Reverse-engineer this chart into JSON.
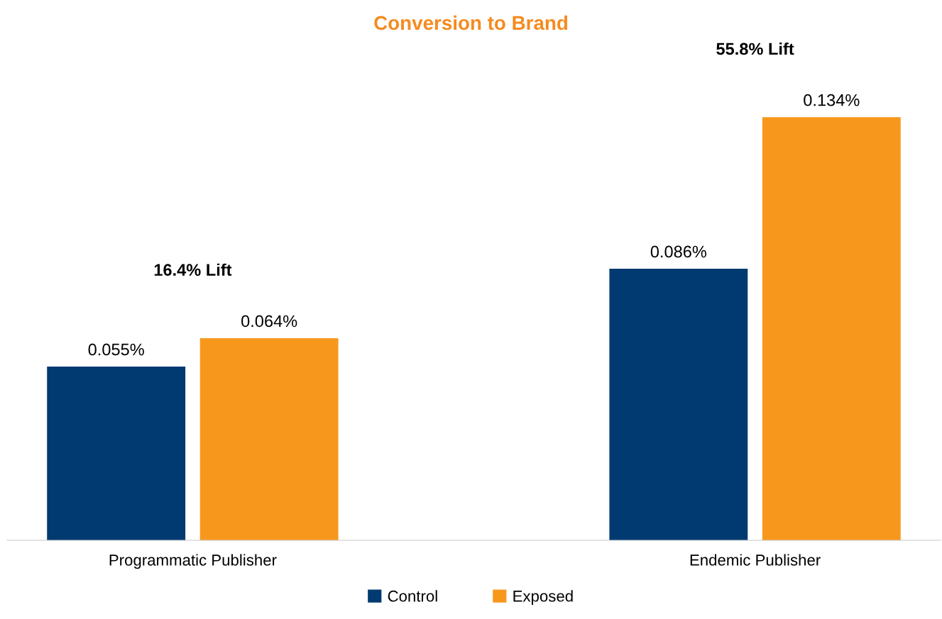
{
  "chart_data": {
    "type": "bar",
    "title": "Conversion to Brand",
    "categories": [
      "Programmatic Publisher",
      "Endemic Publisher"
    ],
    "series": [
      {
        "name": "Control",
        "color": "#003a70",
        "values": [
          0.055,
          0.086
        ],
        "value_labels": [
          "0.055%",
          "0.086%"
        ]
      },
      {
        "name": "Exposed",
        "color": "#f7981d",
        "values": [
          0.064,
          0.134
        ],
        "value_labels": [
          "0.064%",
          "0.134%"
        ]
      }
    ],
    "annotations": [
      "16.4% Lift",
      "55.8% Lift"
    ],
    "grid": false,
    "legend": "bottom",
    "tick_labels": "x"
  }
}
